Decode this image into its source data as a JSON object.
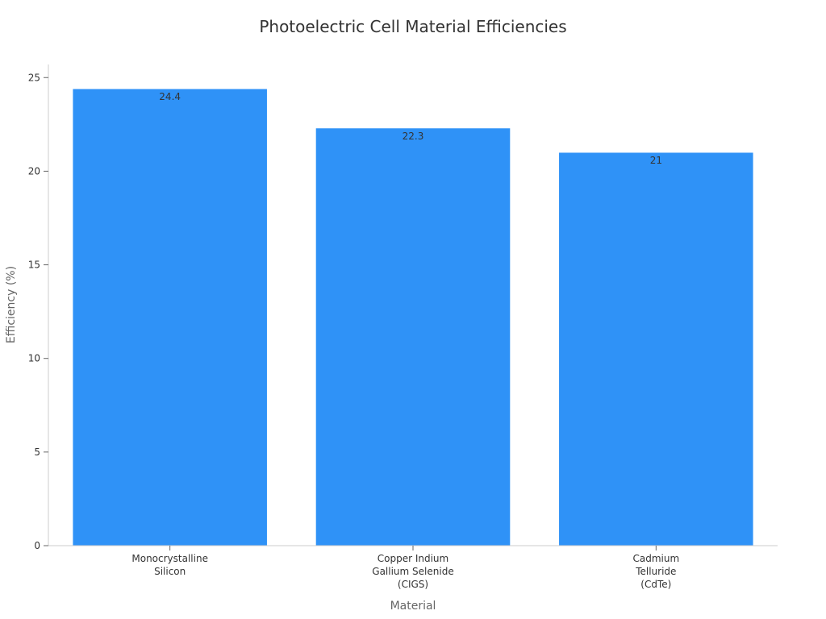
{
  "chart_data": {
    "type": "bar",
    "title": "Photoelectric Cell Material Efficiencies",
    "xlabel": "Material",
    "ylabel": "Efficiency (%)",
    "categories": [
      [
        "Monocrystalline",
        "Silicon"
      ],
      [
        "Copper Indium",
        "Gallium Selenide",
        "(CIGS)"
      ],
      [
        "Cadmium",
        "Telluride",
        "(CdTe)"
      ]
    ],
    "values": [
      24.4,
      22.3,
      21
    ],
    "value_labels": [
      "24.4",
      "22.3",
      "21"
    ],
    "ylim": [
      0,
      25.7
    ],
    "yticks": [
      0,
      5,
      10,
      15,
      20,
      25
    ],
    "grid": false,
    "bar_color": "#2f92f7"
  }
}
